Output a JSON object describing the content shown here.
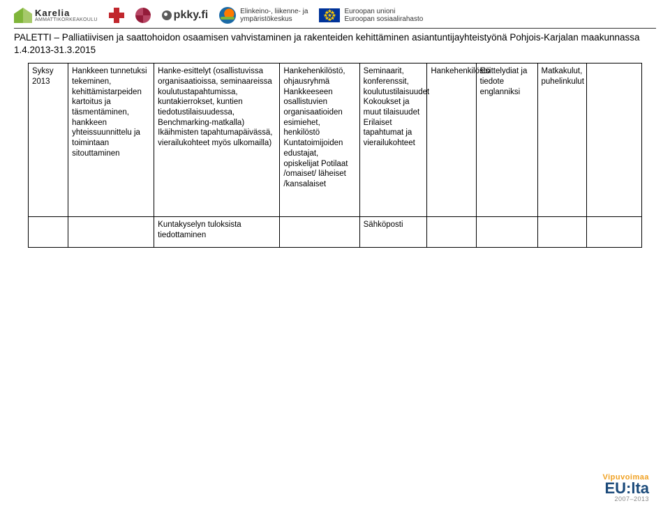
{
  "logos": {
    "karelia_name": "Karelia",
    "karelia_sub": "AMMATTIKORKEAKOULU",
    "pkky": "pkky.fi",
    "ely_line1": "Elinkeino-, liikenne- ja",
    "ely_line2": "ympäristökeskus",
    "eu_line1": "Euroopan unioni",
    "eu_line2": "Euroopan sosiaalirahasto"
  },
  "title": "PALETTI – Palliatiivisen ja saattohoidon osaamisen vahvistaminen ja rakenteiden kehittäminen asiantuntijayhteistyönä Pohjois-Karjalan maakunnassa 1.4.2013-31.3.2015",
  "table": {
    "rows": [
      {
        "c0": "Syksy 2013",
        "c1": "Hankkeen tunnetuksi tekeminen, kehittämistarpeiden kartoitus ja täsmentäminen, hankkeen yhteissuunnittelu ja toimintaan sitouttaminen",
        "c2": "Hanke-esittelyt (osallistuvissa organisaatioissa, seminaareissa koulutustapahtumissa, kuntakierrokset, kuntien tiedotustilaisuudessa, Benchmarking-matkalla) Ikäihmisten tapahtumapäivässä, vierailukohteet myös ulkomailla)",
        "c3": "Hankehenkilöstö, ohjausryhmä Hankkeeseen osallistuvien organisaatioiden esimiehet, henkilöstö Kuntatoimijoiden edustajat, opiskelijat Potilaat /omaiset/ läheiset /kansalaiset",
        "c4": "Seminaarit, konferenssit, koulutustilaisuudet Kokoukset ja muut tilaisuudet Erilaiset tapahtumat ja vierailukohteet",
        "c5": "Hankehenkilöstö",
        "c6": "Esittelydiat ja tiedote englanniksi",
        "c7": "Matkakulut, puhelinkulut",
        "c8": ""
      },
      {
        "c0": "",
        "c1": "",
        "c2": "Kuntakyselyn tuloksista tiedottaminen",
        "c3": "",
        "c4": "Sähköposti",
        "c5": "",
        "c6": "",
        "c7": "",
        "c8": ""
      }
    ]
  },
  "footer": {
    "line1": "Vipuvoimaa",
    "line2": "EU:lta",
    "line3": "2007–2013"
  },
  "colors": {
    "text": "#000000",
    "border": "#000000",
    "background": "#ffffff"
  },
  "fontsizes": {
    "title": 13.5,
    "table": 11.5
  }
}
